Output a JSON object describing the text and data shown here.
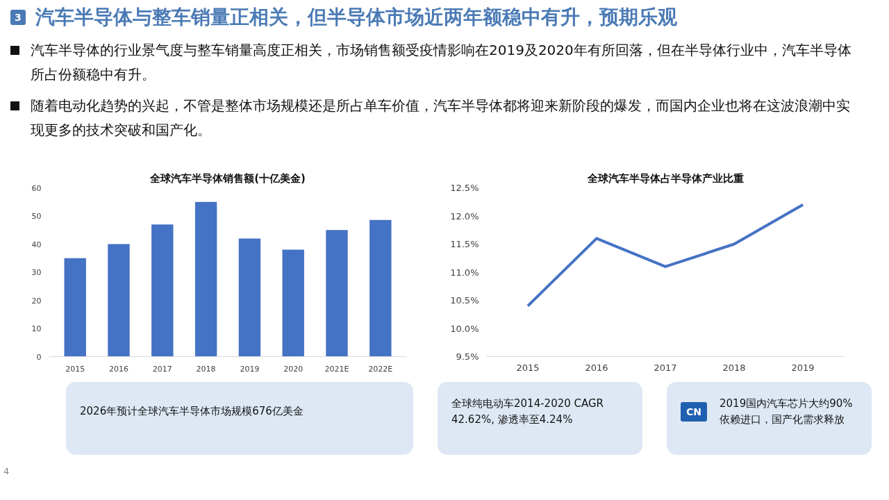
{
  "chart_data": [
    {
      "type": "other",
      "title": "汽车半导体与整车销量正相关，但半导体市场近两年额稳中有升，预期乐观",
      "annotations": [
        "3",
        "汽车半导体的行业景气度与整车销量高度正相关，市场销售额受疫情影响在2019及2020年有所回落，但在半导体行业中，汽车半导体所占份额稳中有升。",
        "随着电动化趋势的兴起，不管是整体市场规模还是所占单车价值，汽车半导体都将迎来新阶段的爆发，而国内企业也将在这波浪潮中实现更多的技术突破和国产化。"
      ]
    },
    {
      "type": "bar",
      "title": "全球汽车半导体销售额(十亿美金)",
      "categories": [
        "2015",
        "2016",
        "2017",
        "2018",
        "2019",
        "2020",
        "2021E",
        "2022E"
      ],
      "values": [
        35,
        40,
        47,
        55,
        42,
        38,
        45,
        48.6
      ],
      "color": "#4472c4",
      "ylim": [
        0,
        60
      ],
      "yticks": [
        0,
        10,
        20,
        30,
        40,
        50,
        60
      ],
      "grid": false
    },
    {
      "type": "line",
      "title": "全球汽车半导体占半导体产业比重",
      "categories": [
        "2015",
        "2016",
        "2017",
        "2018",
        "2019"
      ],
      "values": [
        10.4,
        11.6,
        11.1,
        11.5,
        12.2
      ],
      "color": "#4472c4",
      "line_style": "solid",
      "ylim": [
        9.5,
        12.5
      ],
      "yticks": [
        {
          "value": 9.5,
          "label": "9.5%"
        },
        {
          "value": 10,
          "label": "10.0%"
        },
        {
          "value": 10.5,
          "label": "10.5%"
        },
        {
          "value": 11,
          "label": "11.0%"
        },
        {
          "value": 11.5,
          "label": "11.5%"
        },
        {
          "value": 12,
          "label": "12.0%"
        },
        {
          "value": 12.5,
          "label": "12.5%"
        }
      ],
      "grid": false
    },
    {
      "type": "other",
      "annotations": [
        "2026年预计全球汽车半导体市场规模676亿美金"
      ]
    },
    {
      "type": "other",
      "annotations": [
        "全球纯电动车2014-2020 CAGR 42.62%, 渗透率至4.24%"
      ]
    },
    {
      "type": "other",
      "annotations": [
        "2019国内汽车芯片大约90%依赖进口，国产化需求释放",
        "CN"
      ]
    },
    {
      "type": "other",
      "annotations": [
        "4"
      ]
    }
  ]
}
